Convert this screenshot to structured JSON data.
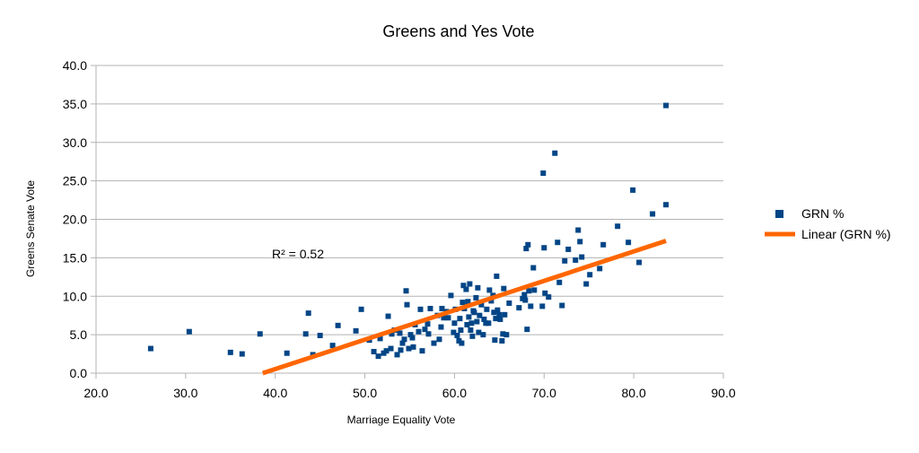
{
  "chart_data": {
    "type": "scatter",
    "title": "Greens and Yes Vote",
    "xlabel": "Marriage Equality Vote",
    "ylabel": "Greens Senate Vote",
    "xlim": [
      20,
      90
    ],
    "ylim": [
      0,
      40
    ],
    "x_ticks": [
      "20.0",
      "30.0",
      "40.0",
      "50.0",
      "60.0",
      "70.0",
      "80.0",
      "90.0"
    ],
    "y_ticks": [
      "0.0",
      "5.0",
      "10.0",
      "15.0",
      "20.0",
      "25.0",
      "30.0",
      "35.0",
      "40.0"
    ],
    "grid": "horizontal",
    "legend_position": "right",
    "annotation": "R² = 0.52",
    "colors": {
      "points": "#004586",
      "trendline": "#ff6600",
      "grid": "#b3b3b3",
      "axis": "#b3b3b3"
    },
    "series": [
      {
        "name": "GRN %",
        "marker": "square",
        "points": [
          [
            26.1,
            3.2
          ],
          [
            30.4,
            5.4
          ],
          [
            35.0,
            2.7
          ],
          [
            36.3,
            2.5
          ],
          [
            38.3,
            5.1
          ],
          [
            41.3,
            2.6
          ],
          [
            43.4,
            5.1
          ],
          [
            43.7,
            7.8
          ],
          [
            44.2,
            2.4
          ],
          [
            45.0,
            4.9
          ],
          [
            46.4,
            3.6
          ],
          [
            47.0,
            6.2
          ],
          [
            49.0,
            5.5
          ],
          [
            49.6,
            8.3
          ],
          [
            50.5,
            4.3
          ],
          [
            51.0,
            2.8
          ],
          [
            51.5,
            2.2
          ],
          [
            51.7,
            4.5
          ],
          [
            52.1,
            2.6
          ],
          [
            52.4,
            2.9
          ],
          [
            52.6,
            7.4
          ],
          [
            52.9,
            3.2
          ],
          [
            53.0,
            5.1
          ],
          [
            53.3,
            5.6
          ],
          [
            53.6,
            2.4
          ],
          [
            53.9,
            5.2
          ],
          [
            54.0,
            3.0
          ],
          [
            54.2,
            3.9
          ],
          [
            54.4,
            4.4
          ],
          [
            54.6,
            10.7
          ],
          [
            54.7,
            8.9
          ],
          [
            54.9,
            3.2
          ],
          [
            55.1,
            5.0
          ],
          [
            55.3,
            4.6
          ],
          [
            55.4,
            3.4
          ],
          [
            55.6,
            6.3
          ],
          [
            56.0,
            5.4
          ],
          [
            56.2,
            8.3
          ],
          [
            56.4,
            2.9
          ],
          [
            56.7,
            5.7
          ],
          [
            57.0,
            6.4
          ],
          [
            57.1,
            5.1
          ],
          [
            57.3,
            8.4
          ],
          [
            57.7,
            3.9
          ],
          [
            58.1,
            7.5
          ],
          [
            58.3,
            4.4
          ],
          [
            58.5,
            6.0
          ],
          [
            58.6,
            8.4
          ],
          [
            58.8,
            7.2
          ],
          [
            59.1,
            8.0
          ],
          [
            59.3,
            7.2
          ],
          [
            59.6,
            10.1
          ],
          [
            59.9,
            5.3
          ],
          [
            60.0,
            6.5
          ],
          [
            60.1,
            8.3
          ],
          [
            60.3,
            4.9
          ],
          [
            60.5,
            4.2
          ],
          [
            60.6,
            7.1
          ],
          [
            60.7,
            5.6
          ],
          [
            60.8,
            3.9
          ],
          [
            60.9,
            9.2
          ],
          [
            61.0,
            11.4
          ],
          [
            61.1,
            8.4
          ],
          [
            61.3,
            10.9
          ],
          [
            61.4,
            6.3
          ],
          [
            61.5,
            9.3
          ],
          [
            61.6,
            7.3
          ],
          [
            61.7,
            11.6
          ],
          [
            61.8,
            5.6
          ],
          [
            61.9,
            6.5
          ],
          [
            62.0,
            4.8
          ],
          [
            62.1,
            8.1
          ],
          [
            62.2,
            7.9
          ],
          [
            62.4,
            9.8
          ],
          [
            62.5,
            6.7
          ],
          [
            62.6,
            11.1
          ],
          [
            62.7,
            5.3
          ],
          [
            62.8,
            7.5
          ],
          [
            63.0,
            8.9
          ],
          [
            63.2,
            5.0
          ],
          [
            63.3,
            7.0
          ],
          [
            63.5,
            6.5
          ],
          [
            63.6,
            8.3
          ],
          [
            63.8,
            6.5
          ],
          [
            63.9,
            10.8
          ],
          [
            64.1,
            9.4
          ],
          [
            64.3,
            10.1
          ],
          [
            64.4,
            7.9
          ],
          [
            64.5,
            4.3
          ],
          [
            64.6,
            7.1
          ],
          [
            64.7,
            12.6
          ],
          [
            64.8,
            8.2
          ],
          [
            65.0,
            7.6
          ],
          [
            65.1,
            7.0
          ],
          [
            65.3,
            4.2
          ],
          [
            65.4,
            5.1
          ],
          [
            65.5,
            11.0
          ],
          [
            65.6,
            7.6
          ],
          [
            65.8,
            5.0
          ],
          [
            66.1,
            9.1
          ],
          [
            67.2,
            8.5
          ],
          [
            67.6,
            9.7
          ],
          [
            67.8,
            10.2
          ],
          [
            67.9,
            9.5
          ],
          [
            68.0,
            16.2
          ],
          [
            68.1,
            5.7
          ],
          [
            68.2,
            16.7
          ],
          [
            68.3,
            10.7
          ],
          [
            68.5,
            8.7
          ],
          [
            68.8,
            13.7
          ],
          [
            68.9,
            10.8
          ],
          [
            69.8,
            8.7
          ],
          [
            69.9,
            26.0
          ],
          [
            70.0,
            16.3
          ],
          [
            70.1,
            10.4
          ],
          [
            70.5,
            9.9
          ],
          [
            71.2,
            28.6
          ],
          [
            71.5,
            17.0
          ],
          [
            71.7,
            11.8
          ],
          [
            72.0,
            8.8
          ],
          [
            72.3,
            14.6
          ],
          [
            72.7,
            16.1
          ],
          [
            73.5,
            14.7
          ],
          [
            73.8,
            18.6
          ],
          [
            74.0,
            17.1
          ],
          [
            74.2,
            15.1
          ],
          [
            74.7,
            11.6
          ],
          [
            75.1,
            12.8
          ],
          [
            76.2,
            13.6
          ],
          [
            76.6,
            16.7
          ],
          [
            78.2,
            19.1
          ],
          [
            79.4,
            17.0
          ],
          [
            79.9,
            23.8
          ],
          [
            80.6,
            14.4
          ],
          [
            82.1,
            20.7
          ],
          [
            83.6,
            21.9
          ],
          [
            83.6,
            34.8
          ]
        ]
      },
      {
        "name": "Linear (GRN %)",
        "type": "line",
        "points": [
          [
            38.6,
            0.0
          ],
          [
            83.6,
            17.2
          ]
        ]
      }
    ]
  }
}
